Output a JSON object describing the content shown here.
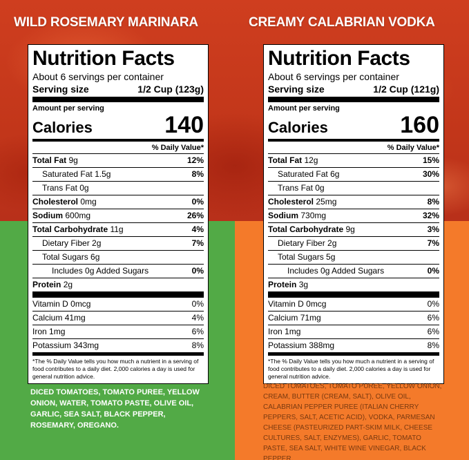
{
  "colors": {
    "left_panel": "#52aa46",
    "right_panel": "#f47a2a",
    "sauce_red": "#c8391c"
  },
  "left": {
    "heading": "WILD ROSEMARY MARINARA",
    "label": {
      "title": "Nutrition Facts",
      "servings_per_container": "About 6 servings per container",
      "serving_size_label": "Serving size",
      "serving_size_value": "1/2 Cup (123g)",
      "amount_per_serving": "Amount per serving",
      "calories_label": "Calories",
      "calories_value": "140",
      "dv_header": "% Daily Value*",
      "rows": [
        {
          "name": "Total Fat",
          "amount": "9g",
          "dv": "12%"
        },
        {
          "name": "Saturated Fat",
          "amount": "1.5g",
          "dv": "8%"
        },
        {
          "name": "Trans Fat",
          "amount": "0g",
          "dv": ""
        },
        {
          "name": "Cholesterol",
          "amount": "0mg",
          "dv": "0%"
        },
        {
          "name": "Sodium",
          "amount": "600mg",
          "dv": "26%"
        },
        {
          "name": "Total Carbohydrate",
          "amount": "11g",
          "dv": "4%"
        },
        {
          "name": "Dietary Fiber",
          "amount": "2g",
          "dv": "7%"
        },
        {
          "name": "Total Sugars",
          "amount": "6g",
          "dv": ""
        },
        {
          "name": "Includes 0g Added Sugars",
          "amount": "",
          "dv": "0%"
        },
        {
          "name": "Protein",
          "amount": "2g",
          "dv": ""
        }
      ],
      "vitamins": [
        {
          "name": "Vitamin D",
          "amount": "0mcg",
          "dv": "0%"
        },
        {
          "name": "Calcium",
          "amount": "41mg",
          "dv": "4%"
        },
        {
          "name": "Iron",
          "amount": "1mg",
          "dv": "6%"
        },
        {
          "name": "Potassium",
          "amount": "343mg",
          "dv": "8%"
        }
      ],
      "footnote": "*The % Daily Value tells you how much a nutrient in a serving of food contributes to a daily diet. 2,000 calories a day is used for general nutrition advice."
    },
    "ingredients": "DICED TOMATOES, TOMATO PUREE, YELLOW ONION, WATER, TOMATO PASTE, OLIVE OIL, GARLIC, SEA SALT, BLACK PEPPER, ROSEMARY, OREGANO."
  },
  "right": {
    "heading": "CREAMY CALABRIAN VODKA",
    "label": {
      "title": "Nutrition Facts",
      "servings_per_container": "About 6 servings per container",
      "serving_size_label": "Serving size",
      "serving_size_value": "1/2 Cup (121g)",
      "amount_per_serving": "Amount per serving",
      "calories_label": "Calories",
      "calories_value": "160",
      "dv_header": "% Daily Value*",
      "rows": [
        {
          "name": "Total Fat",
          "amount": "12g",
          "dv": "15%"
        },
        {
          "name": "Saturated Fat",
          "amount": "6g",
          "dv": "30%"
        },
        {
          "name": "Trans Fat",
          "amount": "0g",
          "dv": ""
        },
        {
          "name": "Cholesterol",
          "amount": "25mg",
          "dv": "8%"
        },
        {
          "name": "Sodium",
          "amount": "730mg",
          "dv": "32%"
        },
        {
          "name": "Total Carbohydrate",
          "amount": "9g",
          "dv": "3%"
        },
        {
          "name": "Dietary Fiber",
          "amount": "2g",
          "dv": "7%"
        },
        {
          "name": "Total Sugars",
          "amount": "5g",
          "dv": ""
        },
        {
          "name": "Includes 0g Added Sugars",
          "amount": "",
          "dv": "0%"
        },
        {
          "name": "Protein",
          "amount": "3g",
          "dv": ""
        }
      ],
      "vitamins": [
        {
          "name": "Vitamin D",
          "amount": "0mcg",
          "dv": "0%"
        },
        {
          "name": "Calcium",
          "amount": "71mg",
          "dv": "6%"
        },
        {
          "name": "Iron",
          "amount": "1mg",
          "dv": "6%"
        },
        {
          "name": "Potassium",
          "amount": "388mg",
          "dv": "8%"
        }
      ],
      "footnote": "*The % Daily Value tells you how much a nutrient in a serving of food contributes to a daily diet. 2,000 calories a day is used for general nutrition advice."
    },
    "ingredients": "DICED TOMATOES, TOMATO PUREE, YELLOW ONION, CREAM, BUTTER (CREAM, SALT), OLIVE OIL, CALABRIAN PEPPER PUREE (ITALIAN CHERRY PEPPERS, SALT, ACETIC ACID), VODKA, PARMESAN CHEESE (PASTEURIZED PART-SKIM MILK, CHEESE CULTURES, SALT, ENZYMES), GARLIC, TOMATO PASTE, SEA SALT, WHITE WINE VINEGAR, BLACK PEPPER."
  }
}
